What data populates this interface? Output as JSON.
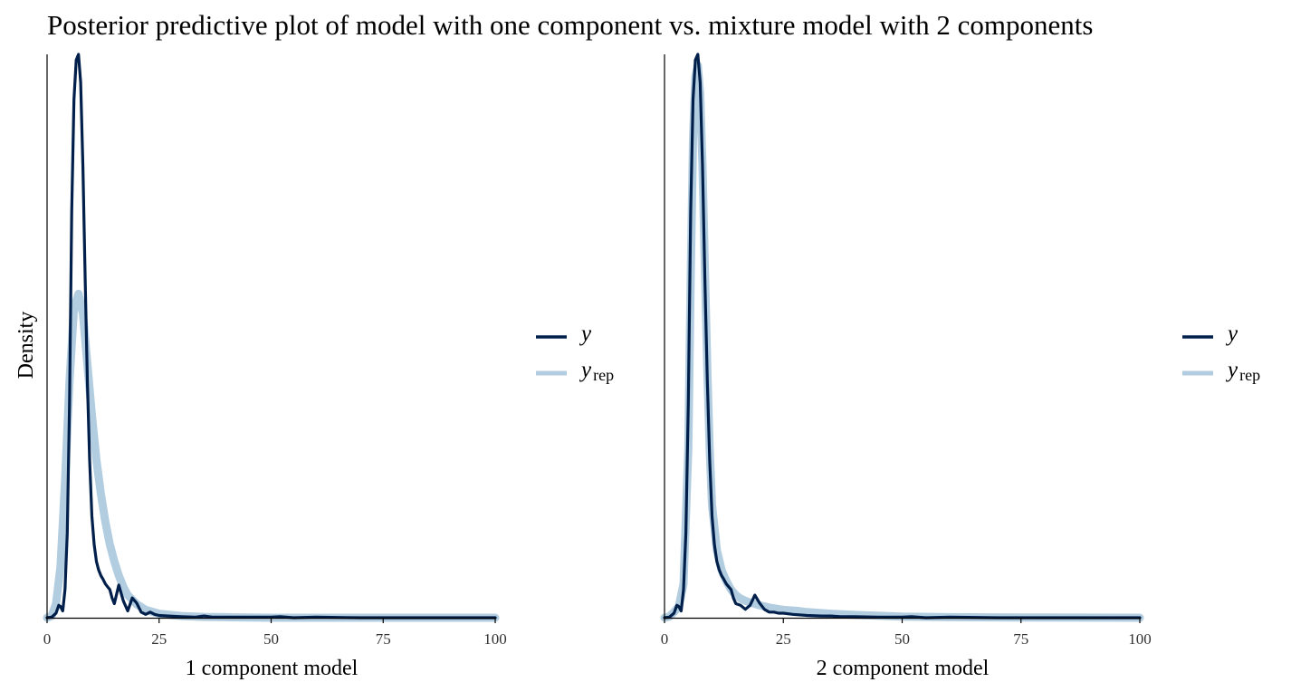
{
  "title": "Posterior predictive plot of model with one component vs. mixture model with 2 components",
  "colors": {
    "y": "#011f4b",
    "yrep": "#b3cde0",
    "axis": "#000000"
  },
  "chart_data": [
    {
      "type": "line",
      "panel": "left",
      "xlabel": "1 component model",
      "ylabel": "Density",
      "xlim": [
        0,
        100
      ],
      "ylim": [
        0,
        1.0
      ],
      "x_ticks": [
        0,
        25,
        50,
        75,
        100
      ],
      "y_ticks_shown": false,
      "legend": [
        "y",
        "y_rep"
      ],
      "legend_position": "right",
      "series": [
        {
          "name": "y",
          "x": [
            0,
            1,
            2,
            2.6,
            3,
            3.5,
            4,
            4.5,
            5,
            5.5,
            6,
            6.5,
            7,
            7.5,
            8,
            8.5,
            9,
            9.5,
            10,
            10.5,
            11,
            11.5,
            12,
            12.5,
            13,
            13.5,
            14,
            14.5,
            15,
            16,
            17,
            18,
            19,
            20,
            21,
            22,
            23,
            24,
            25,
            27,
            30,
            33,
            35,
            37,
            40,
            45,
            50,
            52,
            55,
            60,
            70,
            80,
            90,
            100
          ],
          "values": [
            0,
            0.001,
            0.008,
            0.022,
            0.02,
            0.012,
            0.05,
            0.15,
            0.38,
            0.72,
            0.92,
            0.99,
            1.0,
            0.95,
            0.8,
            0.6,
            0.42,
            0.28,
            0.18,
            0.13,
            0.1,
            0.085,
            0.075,
            0.068,
            0.06,
            0.055,
            0.05,
            0.035,
            0.025,
            0.058,
            0.03,
            0.012,
            0.035,
            0.026,
            0.01,
            0.006,
            0.01,
            0.006,
            0.004,
            0.003,
            0.002,
            0.001,
            0.003,
            0.001,
            0.001,
            0.001,
            0.001,
            0.002,
            0,
            0.001,
            0,
            0,
            0,
            0
          ]
        },
        {
          "name": "y_rep",
          "x": [
            0,
            1,
            2,
            3,
            4,
            5,
            6,
            7,
            8,
            9,
            10,
            11,
            12,
            13,
            14,
            15,
            16,
            17,
            18,
            20,
            22,
            25,
            30,
            35,
            40,
            50,
            60,
            75,
            100
          ],
          "values": [
            0,
            0.003,
            0.025,
            0.09,
            0.24,
            0.42,
            0.55,
            0.575,
            0.54,
            0.45,
            0.36,
            0.28,
            0.22,
            0.17,
            0.13,
            0.1,
            0.075,
            0.055,
            0.04,
            0.024,
            0.014,
            0.007,
            0.003,
            0.0015,
            0.001,
            0,
            0,
            0,
            0
          ]
        }
      ]
    },
    {
      "type": "line",
      "panel": "right",
      "xlabel": "2 component model",
      "ylabel": "",
      "xlim": [
        0,
        100
      ],
      "ylim": [
        0,
        1.0
      ],
      "x_ticks": [
        0,
        25,
        50,
        75,
        100
      ],
      "y_ticks_shown": false,
      "legend": [
        "y",
        "y_rep"
      ],
      "legend_position": "right",
      "series": [
        {
          "name": "y",
          "x": [
            0,
            1,
            2,
            2.6,
            3,
            3.5,
            4,
            4.5,
            5,
            5.5,
            6,
            6.5,
            7,
            7.5,
            8,
            8.5,
            9,
            9.5,
            10,
            10.5,
            11,
            11.5,
            12,
            12.5,
            13,
            13.5,
            14,
            14.5,
            15,
            16,
            17,
            18,
            19,
            20,
            21,
            22,
            23,
            24,
            25,
            27,
            30,
            33,
            35,
            37,
            40,
            45,
            50,
            52,
            55,
            60,
            70,
            80,
            90,
            100
          ],
          "values": [
            0,
            0.001,
            0.008,
            0.022,
            0.02,
            0.012,
            0.05,
            0.15,
            0.38,
            0.72,
            0.92,
            0.99,
            1.0,
            0.95,
            0.8,
            0.6,
            0.42,
            0.28,
            0.18,
            0.13,
            0.1,
            0.085,
            0.075,
            0.068,
            0.06,
            0.055,
            0.05,
            0.035,
            0.025,
            0.022,
            0.015,
            0.022,
            0.04,
            0.026,
            0.015,
            0.01,
            0.01,
            0.008,
            0.008,
            0.006,
            0.004,
            0.003,
            0.003,
            0.002,
            0.002,
            0.001,
            0.001,
            0.002,
            0,
            0.001,
            0,
            0,
            0,
            0
          ]
        },
        {
          "name": "y_rep",
          "x": [
            0,
            1,
            2,
            3,
            4,
            5,
            5.5,
            6,
            6.5,
            7,
            7.5,
            8,
            8.5,
            9,
            9.5,
            10,
            11,
            12,
            13,
            14,
            15,
            16,
            17,
            18,
            20,
            22,
            25,
            28,
            30,
            35,
            40,
            50,
            60,
            75,
            100
          ],
          "values": [
            0,
            0.002,
            0.01,
            0.02,
            0.06,
            0.3,
            0.6,
            0.85,
            0.96,
            0.98,
            0.93,
            0.8,
            0.62,
            0.44,
            0.3,
            0.2,
            0.12,
            0.085,
            0.065,
            0.05,
            0.04,
            0.034,
            0.03,
            0.027,
            0.022,
            0.018,
            0.014,
            0.012,
            0.01,
            0.007,
            0.005,
            0.002,
            0.001,
            0.0005,
            0
          ]
        }
      ]
    }
  ]
}
